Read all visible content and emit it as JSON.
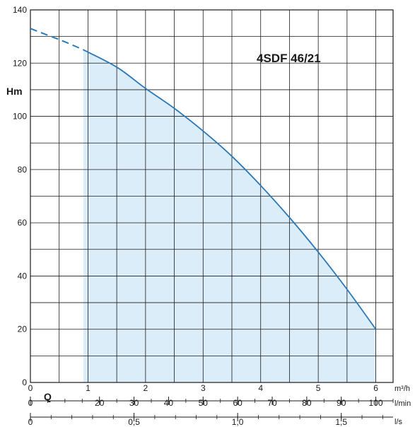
{
  "chart_data": {
    "type": "line",
    "title": "4SDF 46/21",
    "ylabel": "Hm",
    "xlabel": "Q",
    "ylim": [
      0,
      140
    ],
    "xlim": [
      0,
      6.3
    ],
    "grid": true,
    "yticks": [
      0,
      20,
      40,
      60,
      80,
      100,
      120,
      140
    ],
    "x_axes": [
      {
        "unit": "m³/h",
        "ticks": [
          {
            "value": 0,
            "label": "0"
          },
          {
            "value": 1,
            "label": "1"
          },
          {
            "value": 2,
            "label": "2"
          },
          {
            "value": 3,
            "label": "3"
          },
          {
            "value": 4,
            "label": "4"
          },
          {
            "value": 5,
            "label": "5"
          },
          {
            "value": 6,
            "label": "6"
          }
        ]
      },
      {
        "unit": "l/min",
        "ticks": [
          {
            "value": 0,
            "label": "0"
          },
          {
            "value": 20,
            "label": "20"
          },
          {
            "value": 30,
            "label": "30"
          },
          {
            "value": 40,
            "label": "40"
          },
          {
            "value": 50,
            "label": "50"
          },
          {
            "value": 60,
            "label": "60"
          },
          {
            "value": 70,
            "label": "70"
          },
          {
            "value": 80,
            "label": "80"
          },
          {
            "value": 90,
            "label": "90"
          },
          {
            "value": 100,
            "label": "100"
          }
        ]
      },
      {
        "unit": "l/s",
        "ticks": [
          {
            "value": 0,
            "label": "0"
          },
          {
            "value": 0.5,
            "label": "0,5"
          },
          {
            "value": 1.0,
            "label": "1,0"
          },
          {
            "value": 1.5,
            "label": "1,5"
          }
        ]
      }
    ],
    "operating_range": [
      0.92,
      6.0
    ],
    "series": [
      {
        "style": "dashed",
        "x": [
          0,
          0.3,
          0.6,
          0.92
        ],
        "y": [
          133,
          130.5,
          128,
          125
        ]
      },
      {
        "style": "solid",
        "x": [
          0.92,
          1.5,
          2.0,
          2.5,
          3.0,
          3.5,
          4.0,
          4.5,
          5.0,
          5.5,
          6.0
        ],
        "y": [
          125,
          118.5,
          110.5,
          103,
          94.5,
          85,
          74,
          62,
          49,
          35,
          20
        ]
      }
    ],
    "colors": {
      "curve": "#2b78b8",
      "fill": "#daedf9",
      "grid": "#1a1a1a"
    }
  }
}
